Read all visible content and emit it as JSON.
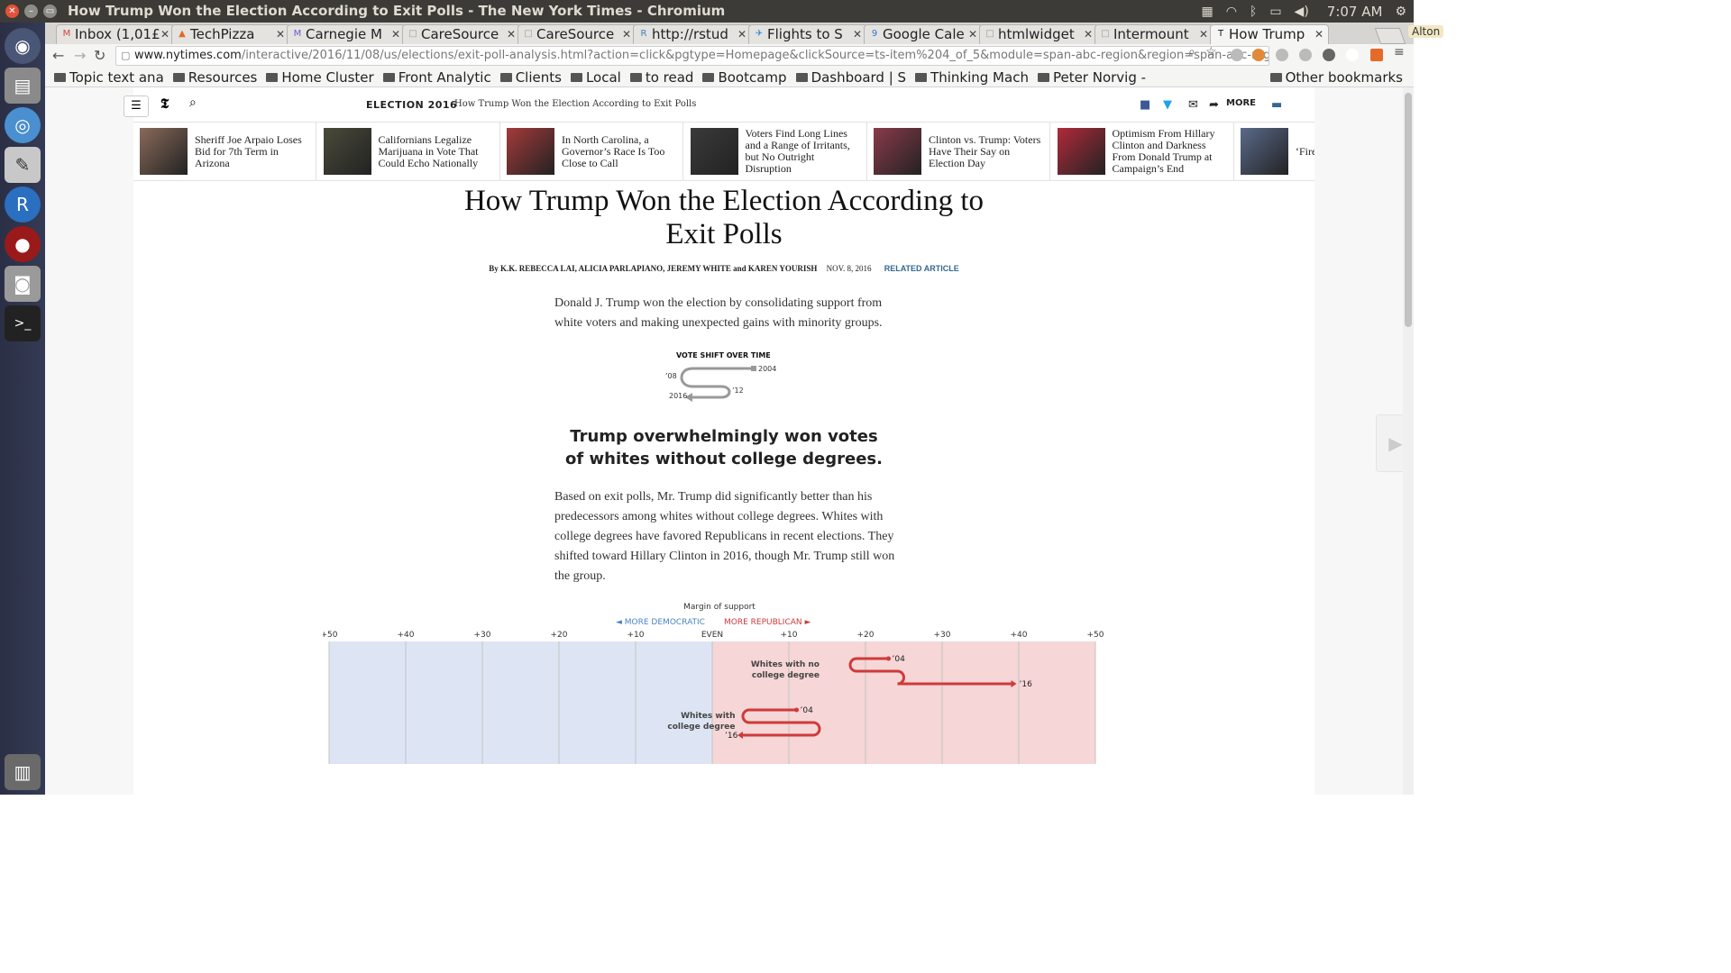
{
  "window": {
    "title": "How Trump Won the Election According to Exit Polls - The New York Times - Chromium"
  },
  "tray": {
    "clock": "7:07 AM",
    "icons": [
      "keyboard-icon",
      "wifi-icon",
      "bluetooth-icon",
      "battery-icon",
      "volume-icon",
      "gear-icon"
    ]
  },
  "tabs": [
    {
      "label": "Inbox (1,01£",
      "fav": "M",
      "color": "#d44638"
    },
    {
      "label": "TechPizza",
      "fav": "▲",
      "color": "#e06a2a"
    },
    {
      "label": "Carnegie M",
      "fav": "M",
      "color": "#6a5acd"
    },
    {
      "label": "CareSource",
      "fav": "□",
      "color": "#999"
    },
    {
      "label": "CareSource",
      "fav": "□",
      "color": "#999"
    },
    {
      "label": "http://rstud",
      "fav": "R",
      "color": "#3c7fc0"
    },
    {
      "label": "Flights to S",
      "fav": "✈",
      "color": "#2a8cd8"
    },
    {
      "label": "Google Cale",
      "fav": "9",
      "color": "#3b6fd6"
    },
    {
      "label": "htmlwidget",
      "fav": "□",
      "color": "#999"
    },
    {
      "label": "Intermount",
      "fav": "□",
      "color": "#999"
    },
    {
      "label": "How Trump",
      "fav": "T",
      "color": "#111"
    }
  ],
  "profile": "Alton",
  "address": {
    "domain": "www.nytimes.com",
    "path": "/interactive/2016/11/08/us/elections/exit-poll-analysis.html?action=click&pgtype=Homepage&clickSource=ts-item%204_of_5&module=span-abc-region&region=span-abc-region&WT.nav=span-abc-region"
  },
  "bookmarks": [
    {
      "label": "Topic text ana"
    },
    {
      "label": "Resources"
    },
    {
      "label": "Home Cluster"
    },
    {
      "label": "Front Analytic"
    },
    {
      "label": "Clients"
    },
    {
      "label": "Local"
    },
    {
      "label": "to read"
    },
    {
      "label": "Bootcamp"
    },
    {
      "label": "Dashboard | S"
    },
    {
      "label": "Thinking Mach"
    },
    {
      "label": "Peter Norvig -"
    }
  ],
  "bookmarks_other": "Other bookmarks",
  "nyt": {
    "section": "ELECTION 2016",
    "header_title": "How Trump Won the Election According to Exit Polls",
    "share_more": "MORE"
  },
  "ribbon": [
    {
      "text": "Sheriff Joe Arpaio Loses Bid for 7th Term in Arizona",
      "thumb": "#8a6a5a"
    },
    {
      "text": "Californians Legalize Marijuana in Vote That Could Echo Nationally",
      "thumb": "#4a4a3a"
    },
    {
      "text": "In North Carolina, a Governor’s Race Is Too Close to Call",
      "thumb": "#a43a3a"
    },
    {
      "text": "Voters Find Long Lines and a Range of Irritants, but No Outright Disruption",
      "thumb": "#3a3a3a"
    },
    {
      "text": "Clinton vs. Trump: Voters Have Their Say on Election Day",
      "thumb": "#8a3a4a"
    },
    {
      "text": "Optimism From Hillary Clinton and Darkness From Donald Trump at Campaign’s End",
      "thumb": "#b02a3a"
    },
    {
      "text": "‘Fire… Final… His L…",
      "thumb": "#5a6a8a"
    }
  ],
  "article": {
    "headline": "How Trump Won the Election According to Exit Polls",
    "byline_authors": "By K.K. REBECCA LAI, ALICIA PARLAPIANO, JEREMY WHITE and KAREN YOURISH",
    "byline_date": "NOV. 8, 2016",
    "related": "RELATED ARTICLE",
    "intro": "Donald J. Trump won the election by consolidating support from white voters and making unexpected gains with minority groups.",
    "shift_legend": {
      "title": "VOTE SHIFT OVER TIME",
      "y2004": "2004",
      "y08": "’08",
      "y12": "’12",
      "y2016": "2016"
    },
    "subhead_line1": "Trump overwhelmingly won votes",
    "subhead_line2": "of whites without college degrees.",
    "body": "Based on exit polls, Mr. Trump did significantly better than his predecessors among whites without college degrees. Whites with college degrees have favored Republicans in recent elections. They shifted toward Hillary Clinton in 2016, though Mr. Trump still won the group."
  },
  "chart_data": {
    "type": "line",
    "title": "Margin of support",
    "direction_left": "◄ MORE DEMOCRATIC",
    "direction_right": "MORE REPUBLICAN ►",
    "x_ticks": [
      "+50",
      "+40",
      "+30",
      "+20",
      "+10",
      "EVEN",
      "+10",
      "+20",
      "+30",
      "+40",
      "+50"
    ],
    "xlim": [
      -50,
      50
    ],
    "colors": {
      "dem_bg": "#dde5f5",
      "rep_bg": "#f6d6d6",
      "line": "#cf3a3a"
    },
    "series": [
      {
        "name": "Whites with no college degree",
        "years": [
          "2004",
          "2008",
          "2012",
          "2016"
        ],
        "values": [
          23,
          18,
          25,
          39
        ],
        "start_label": "’04",
        "end_label": "’16"
      },
      {
        "name": "Whites with college degree",
        "years": [
          "2004",
          "2008",
          "2012",
          "2016"
        ],
        "values": [
          11,
          4,
          14,
          4
        ],
        "start_label": "’04",
        "end_label": "’16"
      }
    ]
  }
}
